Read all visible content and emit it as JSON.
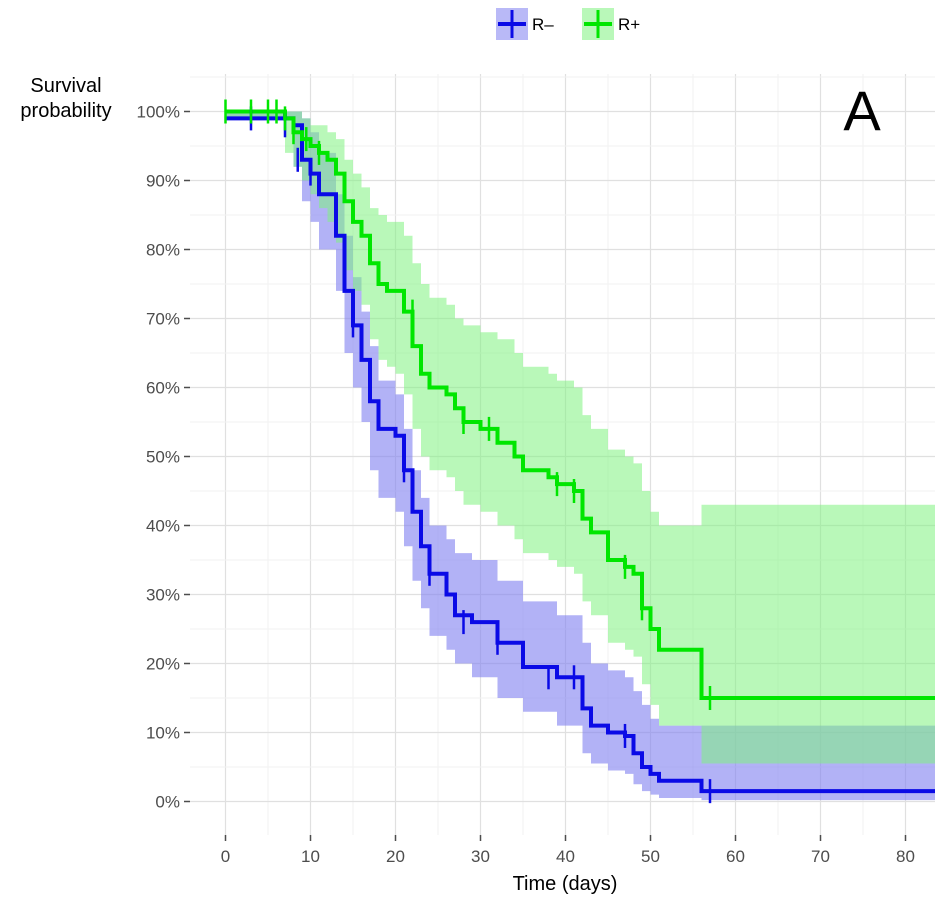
{
  "chart_data": {
    "type": "line",
    "subtype": "kaplan-meier step survival curves with confidence bands",
    "panel_label": "A",
    "xlabel": "Time (days)",
    "ylabel_lines": [
      "Survival",
      "probability"
    ],
    "xlim": [
      -4,
      84
    ],
    "ylim": [
      -5,
      105
    ],
    "x_ticks": [
      0,
      10,
      20,
      30,
      40,
      50,
      60,
      70,
      80
    ],
    "y_ticks": [
      0,
      10,
      20,
      30,
      40,
      50,
      60,
      70,
      80,
      90,
      100
    ],
    "y_tick_labels": [
      "0%",
      "10%",
      "20%",
      "30%",
      "40%",
      "50%",
      "60%",
      "70%",
      "80%",
      "90%",
      "100%"
    ],
    "x_tick_labels": [
      "0",
      "10",
      "20",
      "30",
      "40",
      "50",
      "60",
      "70",
      "80"
    ],
    "grid": true,
    "legend_position": "top-center",
    "series": [
      {
        "name": "R–",
        "color": "#0a0ae6",
        "band_color": "#7f7ff0",
        "x": [
          0,
          8,
          9,
          10,
          11,
          13,
          14,
          15,
          16,
          17,
          18,
          20,
          21,
          22,
          23,
          24,
          26,
          27,
          29,
          32,
          35,
          39,
          42,
          43,
          45,
          47,
          48,
          49,
          50,
          51,
          56,
          84
        ],
        "y": [
          99,
          98,
          93,
          91,
          88,
          82,
          74,
          69,
          64,
          58,
          54,
          53,
          48,
          42,
          37,
          33,
          30,
          27,
          26,
          23,
          19.5,
          18,
          13.5,
          11,
          10,
          9.5,
          7,
          5,
          4,
          3,
          1.5,
          1.5
        ],
        "lower": [
          99,
          92,
          87,
          84,
          80,
          74,
          65,
          60,
          55,
          48,
          44,
          42,
          37,
          32,
          28,
          24,
          22,
          20,
          18,
          15,
          13,
          11,
          7,
          5.5,
          4.5,
          4.0,
          2.5,
          1.5,
          1.0,
          0.5,
          0.2,
          0.2
        ],
        "upper": [
          100,
          100,
          99,
          97,
          94,
          88,
          82,
          76,
          71,
          66,
          61,
          59,
          54,
          48,
          44,
          40,
          38,
          36,
          35,
          32,
          29,
          27,
          23,
          20,
          19,
          18,
          16,
          14,
          12,
          11,
          11,
          11
        ],
        "censor_x": [
          3,
          7,
          8.5,
          10,
          15,
          21,
          24,
          28,
          32,
          38,
          41,
          47,
          57
        ],
        "censor_y": [
          99,
          98,
          93,
          91,
          69,
          48,
          33,
          26,
          23,
          18,
          18,
          9.5,
          1.5
        ]
      },
      {
        "name": "R+",
        "color": "#00e600",
        "band_color": "#7ff27f",
        "x": [
          0,
          7,
          8,
          9,
          10,
          11,
          12,
          13,
          14,
          15,
          16,
          17,
          18,
          19,
          20,
          21,
          22,
          23,
          24,
          26,
          27,
          28,
          30,
          32,
          34,
          35,
          38,
          39,
          41,
          42,
          43,
          45,
          47,
          48,
          49,
          50,
          51,
          56,
          84
        ],
        "y": [
          100,
          99,
          97,
          96,
          95,
          94,
          93,
          91,
          87,
          84,
          82,
          78,
          75,
          74,
          74,
          71,
          66,
          62,
          60,
          59,
          57,
          55,
          54,
          52,
          50,
          48,
          47,
          46,
          45,
          41,
          39,
          35,
          34,
          33,
          28,
          25,
          22,
          15,
          15
        ],
        "lower": [
          99,
          94,
          92,
          90,
          88,
          86,
          84,
          81,
          77,
          74,
          72,
          67,
          64,
          63,
          62,
          59,
          54,
          50,
          48,
          47,
          45,
          43,
          42,
          40,
          38,
          36,
          35,
          34,
          33,
          29,
          27,
          23,
          22,
          21,
          17,
          14,
          11,
          5.5,
          5.5
        ],
        "upper": [
          100,
          100,
          100,
          99,
          98,
          98,
          97,
          96,
          93,
          91,
          89,
          86,
          85,
          84,
          84,
          82,
          78,
          75,
          73,
          72,
          70,
          69,
          68,
          67,
          65,
          63,
          62,
          61,
          60,
          56,
          54,
          51,
          50,
          49,
          45,
          42,
          40,
          43,
          43
        ],
        "censor_x": [
          0,
          3,
          5,
          6,
          7,
          8,
          9.5,
          11,
          22,
          28,
          31,
          39,
          41,
          47,
          49,
          57
        ],
        "censor_y": [
          100,
          100,
          100,
          100,
          99,
          97,
          96,
          94,
          71,
          55,
          54,
          46,
          45,
          34,
          28,
          15
        ]
      }
    ]
  }
}
